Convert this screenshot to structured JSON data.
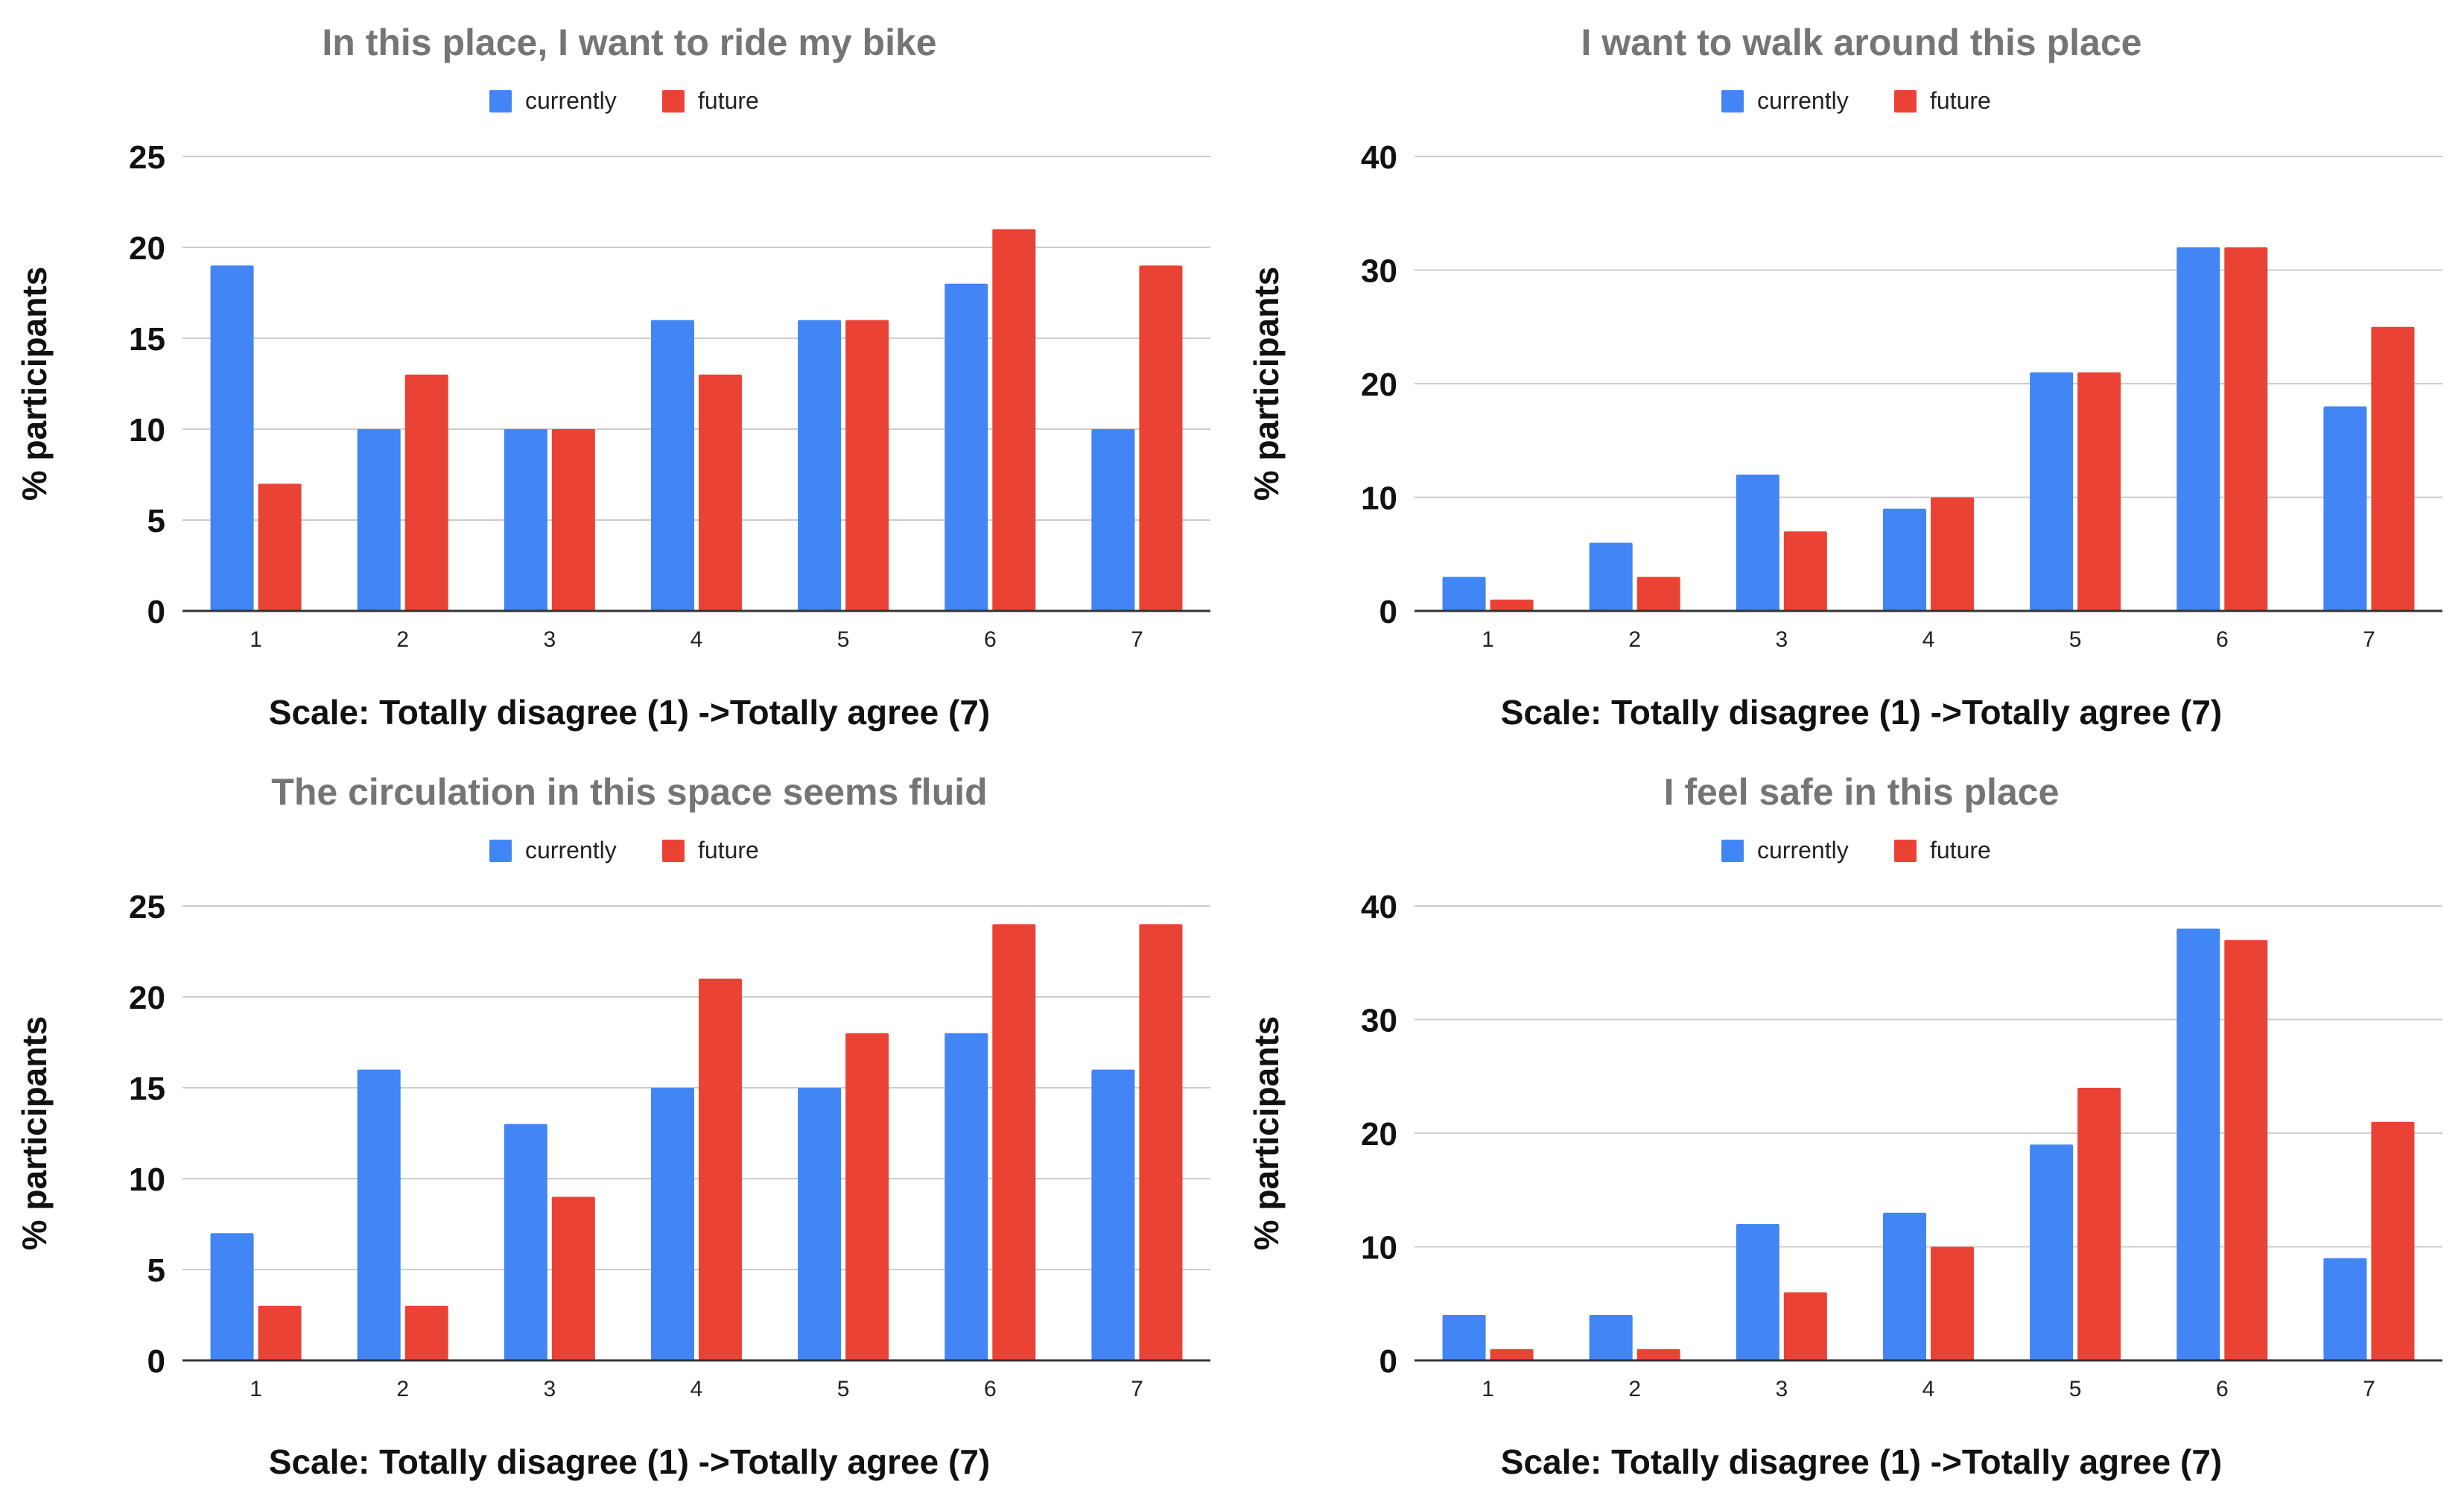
{
  "colors": {
    "currently": "#4285f4",
    "future": "#ea4335",
    "title": "#757575",
    "grid": "#cccccc",
    "axis": "#333333",
    "text": "#222222"
  },
  "chart_data": [
    {
      "type": "bar",
      "title": "In this place, I want to ride my bike",
      "xlabel": "Scale: Totally disagree (1) ->Totally agree (7)",
      "ylabel": "% participants",
      "categories": [
        "1",
        "2",
        "3",
        "4",
        "5",
        "6",
        "7"
      ],
      "ylim": [
        0,
        25
      ],
      "yticks": [
        0,
        5,
        10,
        15,
        20,
        25
      ],
      "legend": "top-center",
      "grid": true,
      "series": [
        {
          "name": "currently",
          "values": [
            19,
            10,
            10,
            16,
            16,
            18,
            10
          ]
        },
        {
          "name": "future",
          "values": [
            7,
            13,
            10,
            13,
            16,
            21,
            19
          ]
        }
      ]
    },
    {
      "type": "bar",
      "title": "I want to walk around this place",
      "xlabel": "Scale: Totally disagree (1) ->Totally agree (7)",
      "ylabel": "% participants",
      "categories": [
        "1",
        "2",
        "3",
        "4",
        "5",
        "6",
        "7"
      ],
      "ylim": [
        0,
        40
      ],
      "yticks": [
        0,
        10,
        20,
        30,
        40
      ],
      "legend": "top-center",
      "grid": true,
      "series": [
        {
          "name": "currently",
          "values": [
            3,
            6,
            12,
            9,
            21,
            32,
            18
          ]
        },
        {
          "name": "future",
          "values": [
            1,
            3,
            7,
            10,
            21,
            32,
            25
          ]
        }
      ]
    },
    {
      "type": "bar",
      "title": "The circulation in this space seems fluid",
      "xlabel": "Scale: Totally disagree (1) ->Totally agree (7)",
      "ylabel": "% participants",
      "categories": [
        "1",
        "2",
        "3",
        "4",
        "5",
        "6",
        "7"
      ],
      "ylim": [
        0,
        25
      ],
      "yticks": [
        0,
        5,
        10,
        15,
        20,
        25
      ],
      "legend": "top-center",
      "grid": true,
      "series": [
        {
          "name": "currently",
          "values": [
            7,
            16,
            13,
            15,
            15,
            18,
            16
          ]
        },
        {
          "name": "future",
          "values": [
            3,
            3,
            9,
            21,
            18,
            24,
            24
          ]
        }
      ]
    },
    {
      "type": "bar",
      "title": "I feel safe in this place",
      "xlabel": "Scale: Totally disagree (1) ->Totally agree (7)",
      "ylabel": "% participants",
      "categories": [
        "1",
        "2",
        "3",
        "4",
        "5",
        "6",
        "7"
      ],
      "ylim": [
        0,
        40
      ],
      "yticks": [
        0,
        10,
        20,
        30,
        40
      ],
      "legend": "top-center",
      "grid": true,
      "series": [
        {
          "name": "currently",
          "values": [
            4,
            4,
            12,
            13,
            19,
            38,
            9
          ]
        },
        {
          "name": "future",
          "values": [
            1,
            1,
            6,
            10,
            24,
            37,
            21
          ]
        }
      ]
    }
  ]
}
